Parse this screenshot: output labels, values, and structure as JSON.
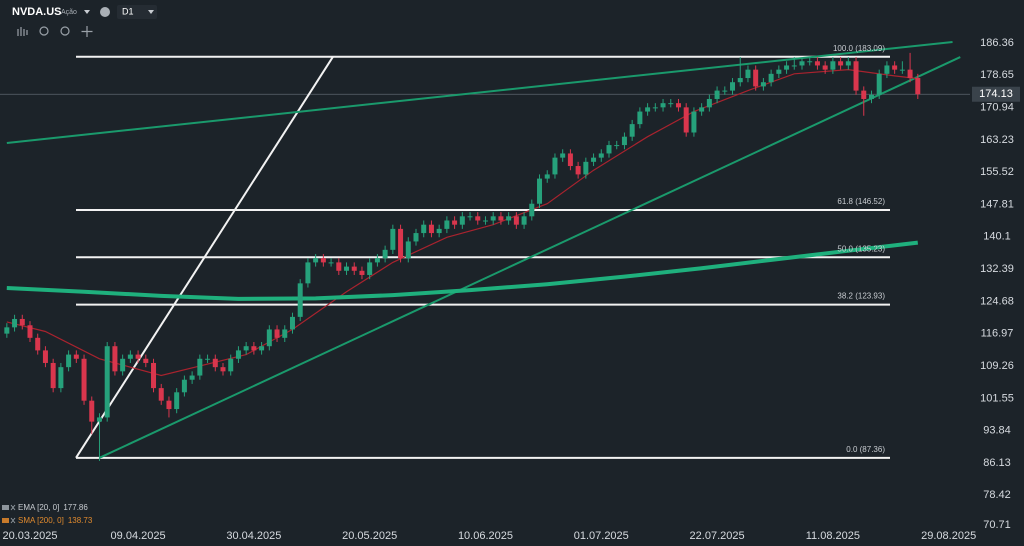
{
  "toolbar": {
    "symbol": "NVDA.US",
    "asset_type": "Ação",
    "timeframe": "D1"
  },
  "chart_data": {
    "type": "candlestick",
    "categories": [
      null,
      null,
      null,
      "20.03.2025",
      null,
      null,
      null,
      null,
      null,
      null,
      null,
      null,
      null,
      null,
      null,
      null,
      null,
      "09.04.2025",
      null,
      null,
      null,
      null,
      null,
      null,
      null,
      null,
      null,
      null,
      null,
      null,
      null,
      null,
      "30.04.2025",
      null,
      null,
      null,
      null,
      null,
      null,
      null,
      null,
      null,
      null,
      null,
      null,
      null,
      null,
      "20.05.2025",
      null,
      null,
      null,
      null,
      null,
      null,
      null,
      null,
      null,
      null,
      null,
      null,
      null,
      null,
      "10.06.2025",
      null,
      null,
      null,
      null,
      null,
      null,
      null,
      null,
      null,
      null,
      null,
      null,
      null,
      null,
      "01.07.2025",
      null,
      null,
      null,
      null,
      null,
      null,
      null,
      null,
      null,
      null,
      null,
      null,
      null,
      null,
      "22.07.2025",
      null,
      null,
      null,
      null,
      null,
      null,
      null,
      null,
      null,
      null,
      null,
      null,
      null,
      null,
      "11.08.2025",
      null,
      null,
      null,
      null,
      null,
      null,
      null,
      null,
      null,
      null,
      null,
      null,
      null,
      null,
      "29.08.2025"
    ],
    "candles": [
      [
        117,
        119.5,
        116,
        118.5
      ],
      [
        118.5,
        121.5,
        117.5,
        120.5
      ],
      [
        120.5,
        121.5,
        118,
        119
      ],
      [
        119,
        120,
        115,
        116
      ],
      [
        116,
        117,
        112,
        113
      ],
      [
        113,
        114,
        109,
        110
      ],
      [
        110,
        111,
        103,
        104
      ],
      [
        104,
        110,
        103,
        109
      ],
      [
        109,
        113,
        108,
        112
      ],
      [
        112,
        113,
        110,
        111
      ],
      [
        111,
        112,
        100,
        101
      ],
      [
        101,
        102,
        93,
        96
      ],
      [
        96,
        98,
        86.62,
        97
      ],
      [
        97,
        115,
        96,
        114
      ],
      [
        114,
        115,
        107,
        108
      ],
      [
        108,
        112,
        107,
        111
      ],
      [
        111,
        113,
        110,
        112
      ],
      [
        112,
        113,
        110,
        111
      ],
      [
        111,
        112,
        109,
        110
      ],
      [
        110,
        111,
        103,
        104
      ],
      [
        104,
        105,
        100,
        101
      ],
      [
        101,
        102,
        97,
        99
      ],
      [
        99,
        104,
        98,
        103
      ],
      [
        103,
        107,
        102,
        106
      ],
      [
        106,
        108,
        105,
        107
      ],
      [
        107,
        112,
        106,
        111
      ],
      [
        111,
        112,
        110,
        111
      ],
      [
        111,
        112,
        108,
        109
      ],
      [
        109,
        110,
        107,
        108
      ],
      [
        108,
        112,
        107,
        111
      ],
      [
        111,
        114,
        110,
        113
      ],
      [
        113,
        115,
        112,
        114
      ],
      [
        114,
        115,
        112,
        113
      ],
      [
        113,
        115,
        112,
        114
      ],
      [
        114,
        119,
        113,
        118
      ],
      [
        118,
        119,
        115,
        116
      ],
      [
        116,
        119,
        115,
        118
      ],
      [
        118,
        122,
        117,
        121
      ],
      [
        121,
        130,
        120,
        129
      ],
      [
        129,
        135,
        128,
        134
      ],
      [
        134,
        136,
        133,
        135
      ],
      [
        135,
        136,
        133,
        134
      ],
      [
        134,
        135,
        133,
        134
      ],
      [
        134,
        135,
        131,
        132
      ],
      [
        132,
        134,
        131,
        133
      ],
      [
        133,
        134,
        131,
        132
      ],
      [
        132,
        133,
        130,
        131
      ],
      [
        131,
        135,
        130,
        134
      ],
      [
        134,
        136,
        133,
        135
      ],
      [
        135,
        138,
        134,
        137
      ],
      [
        137,
        143,
        136,
        142
      ],
      [
        142,
        143,
        134,
        135
      ],
      [
        135,
        140,
        134,
        139
      ],
      [
        139,
        142,
        138,
        141
      ],
      [
        141,
        144,
        140,
        143
      ],
      [
        143,
        144,
        140,
        141
      ],
      [
        141,
        143,
        140,
        142
      ],
      [
        142,
        145,
        141,
        144
      ],
      [
        144,
        145,
        142,
        143
      ],
      [
        143,
        146,
        142,
        145
      ],
      [
        145,
        146,
        144,
        145
      ],
      [
        145,
        146,
        143,
        144
      ],
      [
        144,
        145,
        143,
        144
      ],
      [
        144,
        146,
        143,
        145
      ],
      [
        145,
        146,
        143,
        144
      ],
      [
        144,
        146,
        143,
        145
      ],
      [
        145,
        146,
        142,
        143
      ],
      [
        143,
        146,
        142,
        145
      ],
      [
        145,
        149,
        144,
        148
      ],
      [
        148,
        155,
        147,
        154
      ],
      [
        154,
        156,
        153,
        155
      ],
      [
        155,
        160,
        154,
        159
      ],
      [
        159,
        161,
        158,
        160
      ],
      [
        160,
        161,
        156,
        157
      ],
      [
        157,
        158,
        154,
        155
      ],
      [
        155,
        159,
        154,
        158
      ],
      [
        158,
        160,
        157,
        159
      ],
      [
        159,
        161,
        158,
        160
      ],
      [
        160,
        163,
        159,
        162
      ],
      [
        162,
        163,
        161,
        162
      ],
      [
        162,
        165,
        161,
        164
      ],
      [
        164,
        168,
        163,
        167
      ],
      [
        167,
        171,
        166,
        170
      ],
      [
        170,
        172,
        169,
        171
      ],
      [
        171,
        172,
        170,
        171
      ],
      [
        171,
        173,
        170,
        172
      ],
      [
        172,
        173,
        171,
        172
      ],
      [
        172,
        173,
        170,
        171
      ],
      [
        171,
        172,
        164,
        165
      ],
      [
        165,
        171,
        164,
        170
      ],
      [
        170,
        172,
        169,
        171
      ],
      [
        171,
        174,
        170,
        173
      ],
      [
        173,
        176,
        172,
        175
      ],
      [
        175,
        176,
        174,
        175
      ],
      [
        175,
        178,
        174,
        177
      ],
      [
        177,
        183,
        176,
        178
      ],
      [
        178,
        181,
        177,
        180
      ],
      [
        180,
        181,
        175,
        176
      ],
      [
        176,
        178,
        175,
        177
      ],
      [
        177,
        180,
        176,
        179
      ],
      [
        179,
        181,
        178,
        180
      ],
      [
        180,
        182,
        179,
        181
      ],
      [
        181,
        183,
        180,
        181
      ],
      [
        181,
        183,
        180,
        182
      ],
      [
        182,
        183,
        181,
        182
      ],
      [
        182,
        183,
        180,
        181
      ],
      [
        181,
        182,
        179,
        180
      ],
      [
        180,
        183,
        179,
        182
      ],
      [
        182,
        183,
        180,
        181
      ],
      [
        181,
        183,
        180,
        182
      ],
      [
        182,
        183,
        174,
        175
      ],
      [
        175,
        176,
        169,
        173
      ],
      [
        173,
        175,
        172,
        174
      ],
      [
        174,
        180,
        173,
        179
      ],
      [
        179,
        182,
        178,
        181
      ],
      [
        181,
        182,
        179,
        180
      ],
      [
        180,
        182,
        179,
        180
      ],
      [
        180,
        184,
        177,
        178
      ],
      [
        178,
        179,
        173,
        174.13
      ],
      null,
      null,
      null,
      null
    ],
    "up_color": "#26a17b",
    "down_color": "#d9364d",
    "ylim": [
      70.71,
      186.36
    ],
    "yticks": [
      70.71,
      78.42,
      86.13,
      93.84,
      101.55,
      109.26,
      116.97,
      124.68,
      132.39,
      140.1,
      147.81,
      155.52,
      163.23,
      170.94,
      178.65,
      186.36
    ],
    "last_price": 174.13,
    "indicators": [
      {
        "name": "EMA [20, 0]",
        "value": 177.86,
        "color": "#a8232e",
        "width": 1.2,
        "x": [
          0,
          5,
          12,
          20,
          31,
          37,
          44,
          50,
          57,
          63,
          70,
          76,
          83,
          89,
          96,
          102,
          109,
          115,
          118
        ],
        "values": [
          119.8,
          117.5,
          111,
          107,
          112,
          118,
          127,
          134,
          140,
          143,
          148,
          156,
          164,
          170,
          175,
          179,
          180,
          178.5,
          177.86
        ]
      },
      {
        "name": "SMA [200, 0]",
        "value": 138.73,
        "color": "#1fb07d",
        "width": 4,
        "x": [
          0,
          10,
          20,
          30,
          40,
          50,
          60,
          70,
          80,
          90,
          100,
          110,
          118
        ],
        "values": [
          127.9,
          127,
          126,
          125.3,
          125.4,
          126.2,
          127.4,
          128.8,
          130.6,
          132.6,
          134.8,
          137,
          138.73
        ]
      }
    ],
    "fib_levels": [
      {
        "label": "100.0 (183.09)",
        "value": 183.09
      },
      {
        "label": "61.8 (146.52)",
        "value": 146.52
      },
      {
        "label": "50.0 (135.23)",
        "value": 135.23
      },
      {
        "label": "38.2 (123.93)",
        "value": 123.93
      },
      {
        "label": "0.0 (87.36)",
        "value": 87.36
      }
    ],
    "trendlines": [
      {
        "color": "#1a9a6c",
        "x": [
          0,
          122.5
        ],
        "values": [
          162.5,
          186.6
        ]
      },
      {
        "color": "#1a9a6c",
        "x": [
          12,
          123.5
        ],
        "values": [
          87.36,
          183
        ]
      }
    ]
  }
}
